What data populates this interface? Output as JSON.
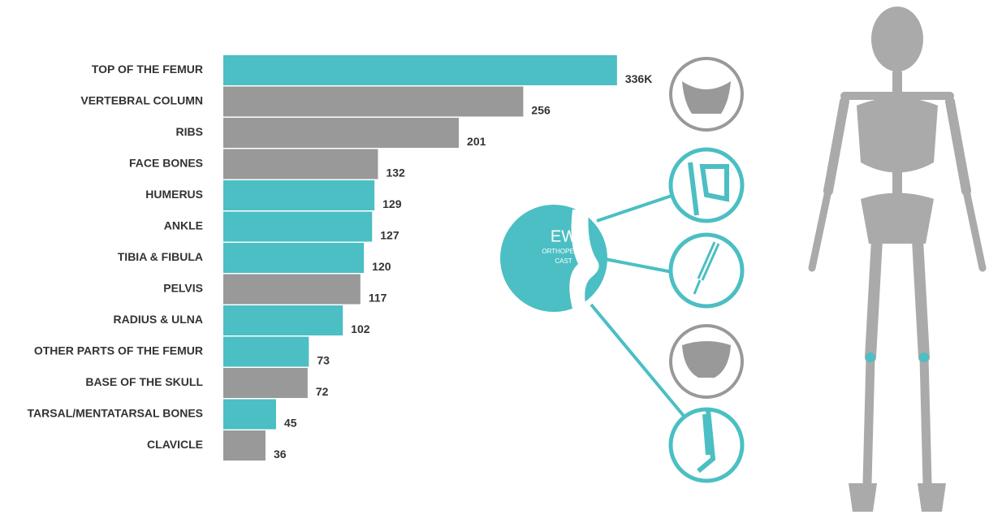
{
  "chart_data": {
    "type": "bar",
    "categories": [
      "TOP OF THE FEMUR",
      "VERTEBRAL COLUMN",
      "RIBS",
      "FACE BONES",
      "HUMERUS",
      "ANKLE",
      "TIBIA & FIBULA",
      "PELVIS",
      "RADIUS & ULNA",
      "OTHER PARTS OF THE FEMUR",
      "BASE OF THE SKULL",
      "TARSAL/MENTATARSAL BONES",
      "CLAVICLE"
    ],
    "values": [
      336,
      256,
      201,
      132,
      129,
      127,
      120,
      117,
      102,
      73,
      72,
      45,
      36
    ],
    "value_labels": [
      "336K",
      "256",
      "201",
      "132",
      "129",
      "127",
      "120",
      "117",
      "102",
      "73",
      "72",
      "45",
      "36"
    ],
    "colors": [
      "#4bbfc3",
      "#999999",
      "#999999",
      "#999999",
      "#4bbfc3",
      "#4bbfc3",
      "#4bbfc3",
      "#999999",
      "#4bbfc3",
      "#4bbfc3",
      "#999999",
      "#4bbfc3",
      "#999999"
    ],
    "annotations": [
      "EW",
      "ORTHOPEDIC",
      "CAST"
    ]
  }
}
